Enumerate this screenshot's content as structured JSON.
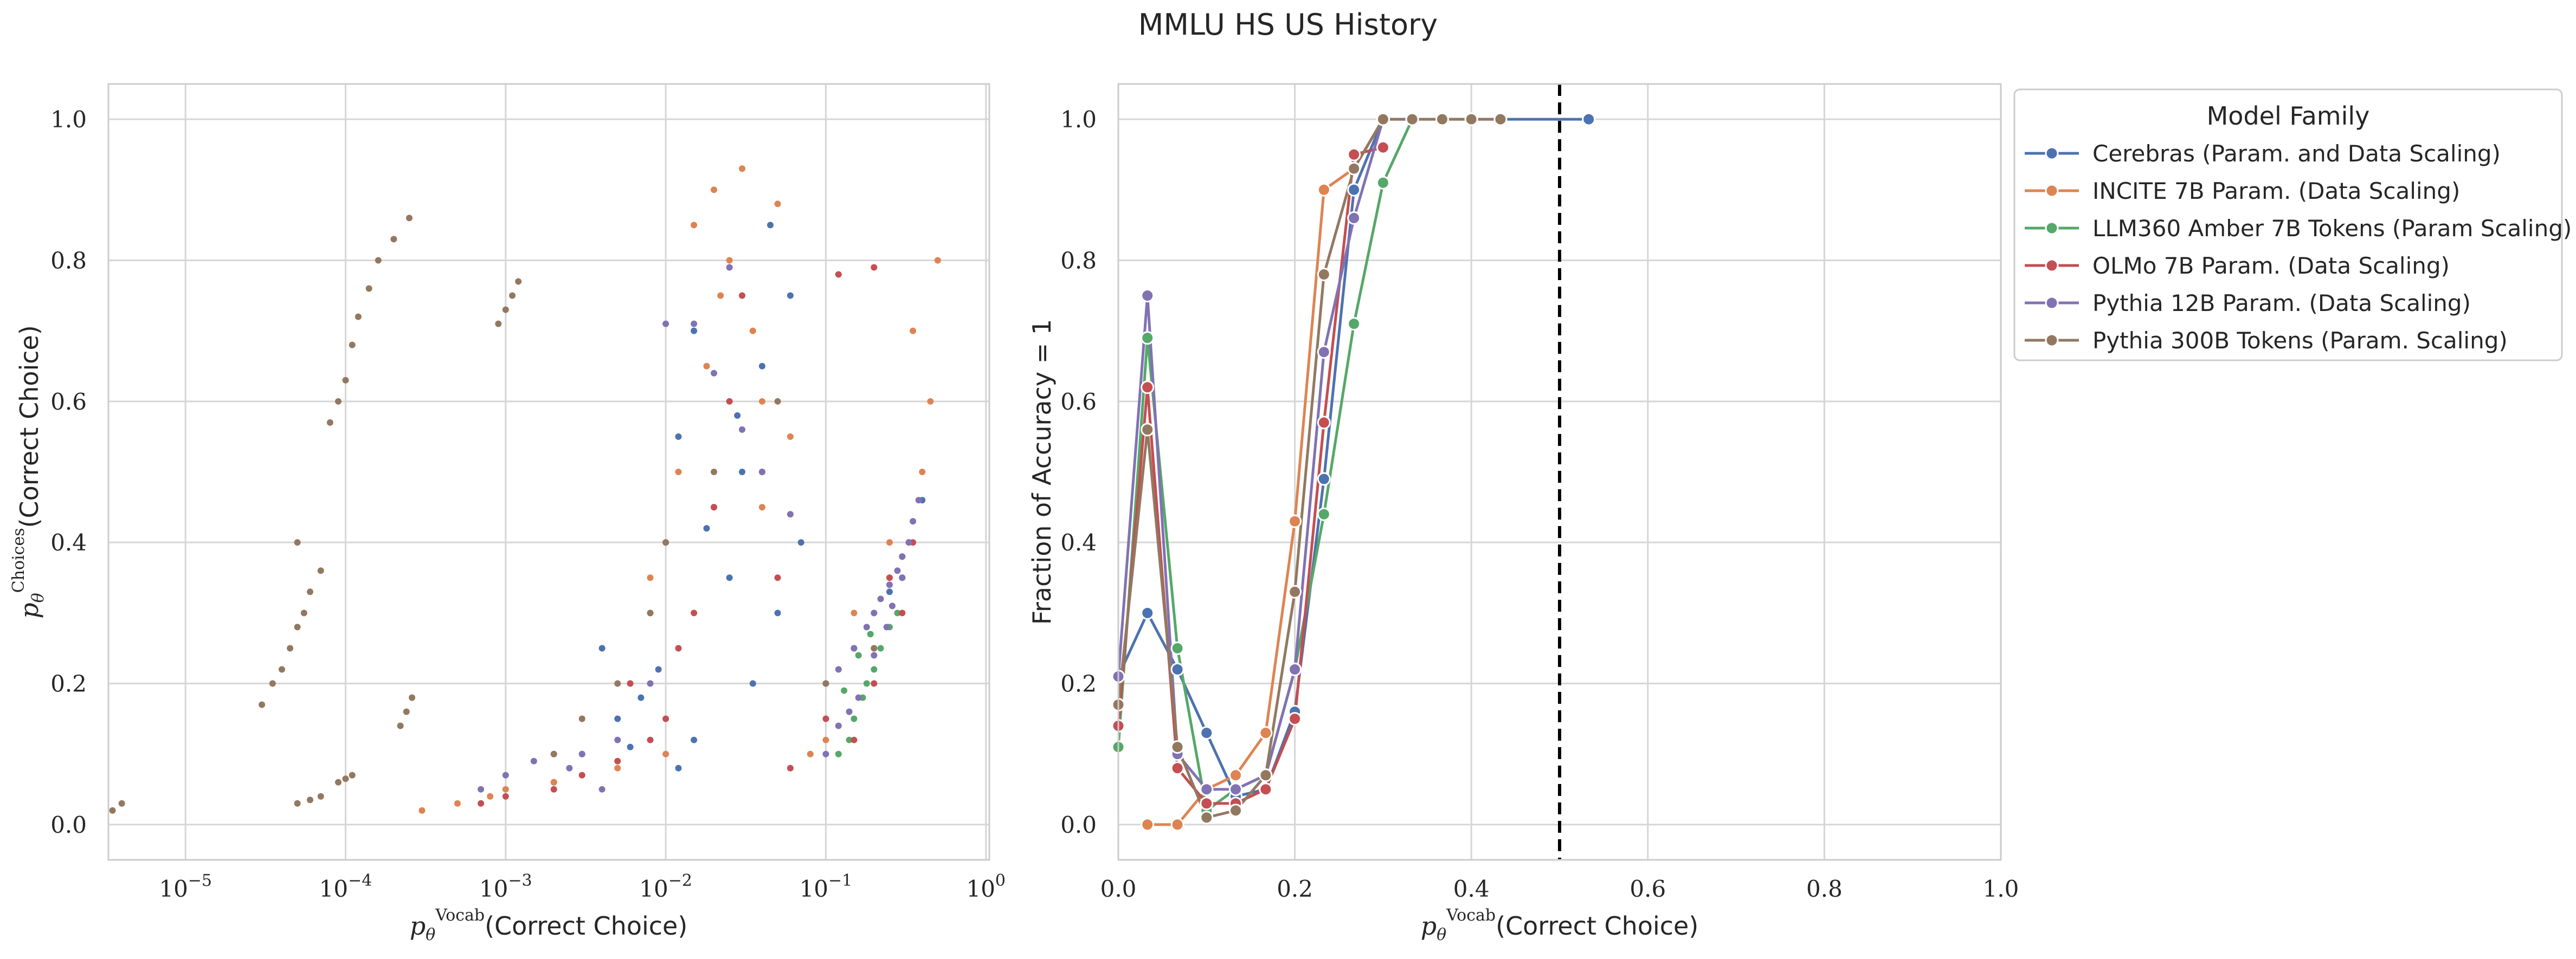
{
  "figure": {
    "title": "MMLU HS US History"
  },
  "colors": {
    "cerebras": "#4c72b0",
    "incite": "#dd8452",
    "llm360": "#55a868",
    "olmo": "#c44e52",
    "pythia12b": "#8172b3",
    "pythia300b": "#937860",
    "grid": "#d6d6d6",
    "axes_edge": "#cccccc",
    "threshold_line": "#000000"
  },
  "chart_data": [
    {
      "type": "scatter",
      "title": "",
      "xlabel": "pθVocab(Correct Choice)",
      "ylabel": "pθChoices(Correct Choice)",
      "x_scale": "log",
      "xlim": [
        3.3e-06,
        1.05
      ],
      "ylim": [
        -0.05,
        1.05
      ],
      "grid": true,
      "x_ticks": [
        {
          "value": 1e-05,
          "label": "10−5"
        },
        {
          "value": 0.0001,
          "label": "10−4"
        },
        {
          "value": 0.001,
          "label": "10−3"
        },
        {
          "value": 0.01,
          "label": "10−2"
        },
        {
          "value": 0.1,
          "label": "10−1"
        },
        {
          "value": 1,
          "label": "100"
        }
      ],
      "y_ticks": [
        "0.0",
        "0.2",
        "0.4",
        "0.6",
        "0.8",
        "1.0"
      ],
      "series": [
        {
          "name": "Cerebras (Param. and Data Scaling)",
          "color_key": "cerebras",
          "points": [
            [
              0.002,
              0.06
            ],
            [
              0.003,
              0.1
            ],
            [
              0.005,
              0.15
            ],
            [
              0.004,
              0.25
            ],
            [
              0.008,
              0.3
            ],
            [
              0.01,
              0.4
            ],
            [
              0.012,
              0.55
            ],
            [
              0.015,
              0.7
            ],
            [
              0.02,
              0.45
            ],
            [
              0.025,
              0.35
            ],
            [
              0.03,
              0.5
            ],
            [
              0.035,
              0.2
            ],
            [
              0.04,
              0.65
            ],
            [
              0.05,
              0.3
            ],
            [
              0.06,
              0.75
            ],
            [
              0.007,
              0.18
            ],
            [
              0.009,
              0.22
            ],
            [
              0.015,
              0.12
            ],
            [
              0.1,
              0.2
            ],
            [
              0.2,
              0.3
            ],
            [
              0.3,
              0.38
            ],
            [
              0.4,
              0.46
            ],
            [
              0.15,
              0.25
            ],
            [
              0.25,
              0.33
            ],
            [
              0.006,
              0.11
            ],
            [
              0.018,
              0.42
            ],
            [
              0.028,
              0.58
            ],
            [
              0.045,
              0.85
            ],
            [
              0.012,
              0.08
            ],
            [
              0.07,
              0.4
            ]
          ]
        },
        {
          "name": "INCITE 7B Param. (Data Scaling)",
          "color_key": "incite",
          "points": [
            [
              0.0003,
              0.02
            ],
            [
              0.0005,
              0.03
            ],
            [
              0.0008,
              0.04
            ],
            [
              0.001,
              0.05
            ],
            [
              0.002,
              0.06
            ],
            [
              0.005,
              0.08
            ],
            [
              0.01,
              0.1
            ],
            [
              0.015,
              0.85
            ],
            [
              0.02,
              0.9
            ],
            [
              0.025,
              0.8
            ],
            [
              0.03,
              0.93
            ],
            [
              0.035,
              0.7
            ],
            [
              0.04,
              0.6
            ],
            [
              0.05,
              0.88
            ],
            [
              0.06,
              0.55
            ],
            [
              0.08,
              0.1
            ],
            [
              0.1,
              0.12
            ],
            [
              0.2,
              0.25
            ],
            [
              0.3,
              0.35
            ],
            [
              0.4,
              0.5
            ],
            [
              0.45,
              0.6
            ],
            [
              0.35,
              0.7
            ],
            [
              0.5,
              0.8
            ],
            [
              0.008,
              0.35
            ],
            [
              0.012,
              0.5
            ],
            [
              0.018,
              0.65
            ],
            [
              0.022,
              0.75
            ],
            [
              0.04,
              0.45
            ],
            [
              0.15,
              0.3
            ],
            [
              0.25,
              0.4
            ]
          ]
        },
        {
          "name": "LLM360 Amber 7B Tokens (Param Scaling)",
          "color_key": "llm360",
          "points": [
            [
              0.12,
              0.1
            ],
            [
              0.15,
              0.15
            ],
            [
              0.18,
              0.2
            ],
            [
              0.2,
              0.22
            ],
            [
              0.25,
              0.28
            ],
            [
              0.3,
              0.35
            ],
            [
              0.33,
              0.4
            ],
            [
              0.14,
              0.12
            ],
            [
              0.17,
              0.18
            ],
            [
              0.22,
              0.25
            ],
            [
              0.28,
              0.3
            ],
            [
              0.16,
              0.24
            ],
            [
              0.19,
              0.27
            ],
            [
              0.13,
              0.19
            ]
          ]
        },
        {
          "name": "OLMo 7B Param. (Data Scaling)",
          "color_key": "olmo",
          "points": [
            [
              0.0007,
              0.03
            ],
            [
              0.001,
              0.04
            ],
            [
              0.002,
              0.05
            ],
            [
              0.003,
              0.07
            ],
            [
              0.005,
              0.09
            ],
            [
              0.008,
              0.12
            ],
            [
              0.01,
              0.15
            ],
            [
              0.015,
              0.3
            ],
            [
              0.02,
              0.45
            ],
            [
              0.025,
              0.6
            ],
            [
              0.03,
              0.75
            ],
            [
              0.04,
              0.5
            ],
            [
              0.05,
              0.35
            ],
            [
              0.1,
              0.15
            ],
            [
              0.2,
              0.2
            ],
            [
              0.3,
              0.3
            ],
            [
              0.35,
              0.4
            ],
            [
              0.12,
              0.78
            ],
            [
              0.2,
              0.79
            ],
            [
              0.006,
              0.2
            ],
            [
              0.012,
              0.25
            ],
            [
              0.06,
              0.08
            ],
            [
              0.15,
              0.12
            ],
            [
              0.25,
              0.35
            ]
          ]
        },
        {
          "name": "Pythia 12B Param. (Data Scaling)",
          "color_key": "pythia12b",
          "points": [
            [
              0.0007,
              0.05
            ],
            [
              0.001,
              0.07
            ],
            [
              0.0015,
              0.09
            ],
            [
              0.002,
              0.1
            ],
            [
              0.003,
              0.1
            ],
            [
              0.005,
              0.12
            ],
            [
              0.008,
              0.2
            ],
            [
              0.01,
              0.71
            ],
            [
              0.015,
              0.71
            ],
            [
              0.02,
              0.64
            ],
            [
              0.025,
              0.79
            ],
            [
              0.03,
              0.56
            ],
            [
              0.04,
              0.5
            ],
            [
              0.06,
              0.44
            ],
            [
              0.1,
              0.2
            ],
            [
              0.12,
              0.22
            ],
            [
              0.15,
              0.25
            ],
            [
              0.18,
              0.28
            ],
            [
              0.2,
              0.3
            ],
            [
              0.22,
              0.32
            ],
            [
              0.25,
              0.34
            ],
            [
              0.28,
              0.36
            ],
            [
              0.3,
              0.38
            ],
            [
              0.33,
              0.4
            ],
            [
              0.35,
              0.43
            ],
            [
              0.38,
              0.46
            ],
            [
              0.1,
              0.1
            ],
            [
              0.12,
              0.14
            ],
            [
              0.14,
              0.16
            ],
            [
              0.16,
              0.18
            ],
            [
              0.2,
              0.24
            ],
            [
              0.24,
              0.28
            ],
            [
              0.26,
              0.31
            ],
            [
              0.3,
              0.35
            ],
            [
              0.004,
              0.05
            ],
            [
              0.0025,
              0.08
            ]
          ]
        },
        {
          "name": "Pythia 300B Tokens (Param. Scaling)",
          "color_key": "pythia300b",
          "points": [
            [
              3.5e-06,
              0.02
            ],
            [
              4e-06,
              0.03
            ],
            [
              3e-05,
              0.17
            ],
            [
              3.5e-05,
              0.2
            ],
            [
              4e-05,
              0.22
            ],
            [
              4.5e-05,
              0.25
            ],
            [
              5e-05,
              0.28
            ],
            [
              5.5e-05,
              0.3
            ],
            [
              6e-05,
              0.33
            ],
            [
              5e-05,
              0.4
            ],
            [
              7e-05,
              0.36
            ],
            [
              5e-05,
              0.03
            ],
            [
              6e-05,
              0.035
            ],
            [
              7e-05,
              0.04
            ],
            [
              8e-05,
              0.57
            ],
            [
              9e-05,
              0.6
            ],
            [
              0.0001,
              0.63
            ],
            [
              0.00011,
              0.68
            ],
            [
              0.00012,
              0.72
            ],
            [
              0.00014,
              0.76
            ],
            [
              0.00016,
              0.8
            ],
            [
              0.0002,
              0.83
            ],
            [
              0.00025,
              0.86
            ],
            [
              9e-05,
              0.06
            ],
            [
              0.0001,
              0.065
            ],
            [
              0.00011,
              0.07
            ],
            [
              0.00022,
              0.14
            ],
            [
              0.00024,
              0.16
            ],
            [
              0.00026,
              0.18
            ],
            [
              0.0009,
              0.71
            ],
            [
              0.001,
              0.73
            ],
            [
              0.0011,
              0.75
            ],
            [
              0.0012,
              0.77
            ],
            [
              0.002,
              0.1
            ],
            [
              0.003,
              0.15
            ],
            [
              0.005,
              0.2
            ],
            [
              0.008,
              0.3
            ],
            [
              0.01,
              0.4
            ],
            [
              0.02,
              0.5
            ],
            [
              0.05,
              0.6
            ],
            [
              0.1,
              0.2
            ],
            [
              0.2,
              0.25
            ]
          ]
        }
      ]
    },
    {
      "type": "line",
      "title": "",
      "xlabel": "pθVocab(Correct Choice)",
      "ylabel": "Fraction of Accuracy = 1",
      "xlim": [
        0.0,
        1.0
      ],
      "ylim": [
        -0.05,
        1.05
      ],
      "grid": true,
      "x_ticks": [
        "0.0",
        "0.2",
        "0.4",
        "0.6",
        "0.8",
        "1.0"
      ],
      "y_ticks": [
        "0.0",
        "0.2",
        "0.4",
        "0.6",
        "0.8",
        "1.0"
      ],
      "threshold_x": 0.5,
      "legend": {
        "title": "Model Family",
        "placement": "outside-right"
      },
      "series": [
        {
          "name": "Cerebras (Param. and Data Scaling)",
          "color_key": "cerebras",
          "x": [
            0.0,
            0.033,
            0.067,
            0.1,
            0.133,
            0.167,
            0.2,
            0.233,
            0.267,
            0.3,
            0.333,
            0.367,
            0.4,
            0.433,
            0.533
          ],
          "y": [
            0.21,
            0.3,
            0.22,
            0.13,
            0.04,
            0.05,
            0.16,
            0.49,
            0.9,
            1.0,
            1.0,
            1.0,
            1.0,
            1.0,
            1.0
          ]
        },
        {
          "name": "INCITE 7B Param. (Data Scaling)",
          "color_key": "incite",
          "x": [
            0.033,
            0.067,
            0.1,
            0.133,
            0.167,
            0.2,
            0.233,
            0.267,
            0.3
          ],
          "y": [
            0.0,
            0.0,
            0.05,
            0.07,
            0.13,
            0.43,
            0.9,
            0.93,
            1.0
          ]
        },
        {
          "name": "LLM360 Amber 7B Tokens (Param Scaling)",
          "color_key": "llm360",
          "x": [
            0.0,
            0.033,
            0.067,
            0.1,
            0.133,
            0.167,
            0.2,
            0.233,
            0.267,
            0.3,
            0.333
          ],
          "y": [
            0.11,
            0.69,
            0.25,
            0.02,
            0.05,
            0.07,
            0.22,
            0.44,
            0.71,
            0.91,
            1.0
          ]
        },
        {
          "name": "OLMo 7B Param. (Data Scaling)",
          "color_key": "olmo",
          "x": [
            0.0,
            0.033,
            0.067,
            0.1,
            0.133,
            0.167,
            0.2,
            0.233,
            0.267,
            0.3
          ],
          "y": [
            0.14,
            0.62,
            0.08,
            0.03,
            0.03,
            0.05,
            0.15,
            0.57,
            0.95,
            0.96
          ]
        },
        {
          "name": "Pythia 12B Param. (Data Scaling)",
          "color_key": "pythia12b",
          "x": [
            0.0,
            0.033,
            0.067,
            0.1,
            0.133,
            0.167,
            0.2,
            0.233,
            0.267,
            0.3
          ],
          "y": [
            0.21,
            0.75,
            0.1,
            0.05,
            0.05,
            0.07,
            0.22,
            0.67,
            0.86,
            1.0
          ]
        },
        {
          "name": "Pythia 300B Tokens (Param. Scaling)",
          "color_key": "pythia300b",
          "x": [
            0.0,
            0.033,
            0.067,
            0.1,
            0.133,
            0.167,
            0.2,
            0.233,
            0.267,
            0.3,
            0.333,
            0.367,
            0.4,
            0.433
          ],
          "y": [
            0.17,
            0.56,
            0.11,
            0.01,
            0.02,
            0.07,
            0.33,
            0.78,
            0.93,
            1.0,
            1.0,
            1.0,
            1.0,
            1.0
          ]
        }
      ]
    }
  ]
}
